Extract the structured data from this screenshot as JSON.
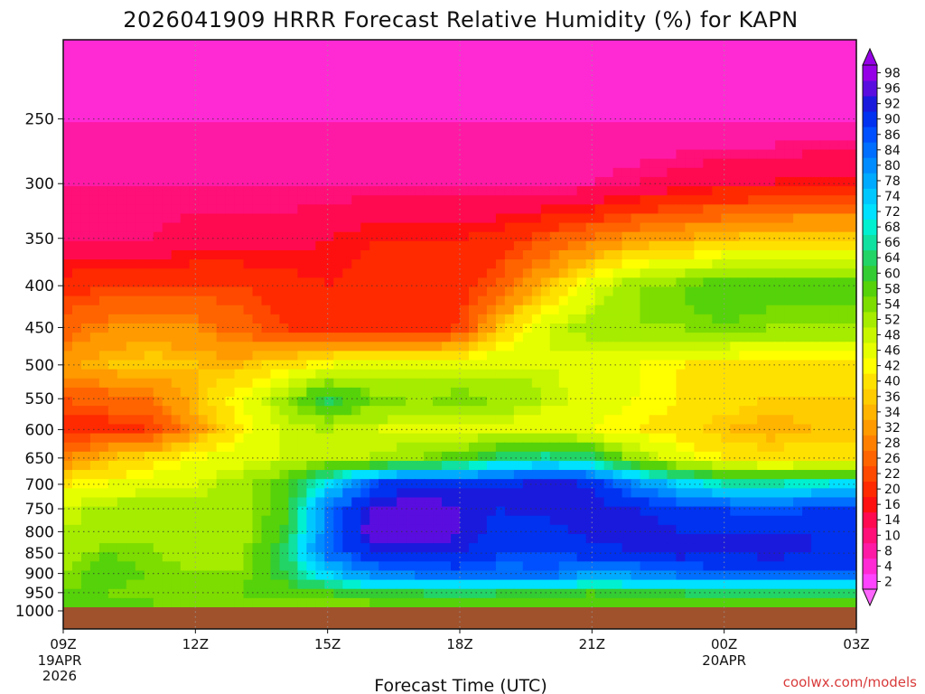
{
  "chart_data": {
    "type": "heatmap",
    "title": "2026041909 HRRR Forecast Relative Humidity (%) for KAPN",
    "xlabel": "Forecast Time (UTC)",
    "ylabel": "",
    "credit": "coolwx.com/models",
    "x_ticks": [
      {
        "label": "09Z",
        "sub": [
          "19APR",
          "2026"
        ],
        "hour": 0
      },
      {
        "label": "12Z",
        "sub": [],
        "hour": 3
      },
      {
        "label": "15Z",
        "sub": [],
        "hour": 6
      },
      {
        "label": "18Z",
        "sub": [],
        "hour": 9
      },
      {
        "label": "21Z",
        "sub": [],
        "hour": 12
      },
      {
        "label": "00Z",
        "sub": [
          "20APR"
        ],
        "hour": 15
      },
      {
        "label": "03Z",
        "sub": [],
        "hour": 18
      }
    ],
    "y_axis": "pressure (hPa), log scale, inverted",
    "y_ticks": [
      250,
      300,
      350,
      400,
      450,
      500,
      550,
      600,
      650,
      700,
      750,
      800,
      850,
      900,
      950,
      1000
    ],
    "ylim": [
      1000,
      200
    ],
    "hours": [
      0,
      1,
      2,
      3,
      4,
      5,
      6,
      7,
      8,
      9,
      10,
      11,
      12,
      13,
      14,
      15,
      16,
      17,
      18
    ],
    "levels": [
      200,
      250,
      300,
      350,
      400,
      450,
      500,
      550,
      600,
      650,
      700,
      750,
      800,
      850,
      900,
      950,
      975
    ],
    "rh": [
      [
        2,
        2,
        2,
        2,
        2,
        2,
        2,
        2,
        2,
        2,
        2,
        2,
        2,
        2,
        2,
        2,
        2,
        2,
        2
      ],
      [
        4,
        4,
        4,
        4,
        4,
        4,
        4,
        4,
        4,
        4,
        4,
        4,
        4,
        4,
        4,
        4,
        4,
        4,
        4
      ],
      [
        8,
        8,
        8,
        8,
        8,
        8,
        8,
        8,
        8,
        8,
        8,
        8,
        8,
        10,
        12,
        14,
        14,
        16,
        16
      ],
      [
        10,
        10,
        10,
        12,
        12,
        12,
        14,
        16,
        16,
        16,
        18,
        22,
        26,
        30,
        32,
        34,
        36,
        36,
        36
      ],
      [
        18,
        20,
        20,
        20,
        20,
        18,
        16,
        18,
        18,
        18,
        24,
        34,
        44,
        52,
        54,
        58,
        56,
        56,
        56
      ],
      [
        24,
        28,
        30,
        28,
        24,
        20,
        18,
        18,
        18,
        20,
        36,
        46,
        50,
        52,
        52,
        54,
        52,
        52,
        52
      ],
      [
        30,
        34,
        36,
        34,
        34,
        38,
        42,
        44,
        44,
        46,
        46,
        46,
        44,
        42,
        40,
        38,
        38,
        38,
        38
      ],
      [
        22,
        24,
        26,
        34,
        42,
        50,
        62,
        54,
        52,
        54,
        52,
        48,
        44,
        42,
        40,
        38,
        36,
        36,
        36
      ],
      [
        18,
        18,
        20,
        30,
        40,
        46,
        48,
        46,
        44,
        44,
        44,
        42,
        42,
        40,
        38,
        34,
        32,
        34,
        34
      ],
      [
        28,
        34,
        38,
        42,
        44,
        46,
        48,
        48,
        52,
        56,
        62,
        66,
        62,
        50,
        44,
        40,
        38,
        38,
        38
      ],
      [
        40,
        42,
        44,
        46,
        50,
        56,
        70,
        86,
        90,
        90,
        90,
        92,
        90,
        80,
        72,
        66,
        66,
        68,
        70
      ],
      [
        46,
        50,
        52,
        50,
        50,
        56,
        82,
        92,
        94,
        92,
        90,
        92,
        92,
        90,
        88,
        86,
        84,
        86,
        86
      ],
      [
        48,
        50,
        52,
        50,
        50,
        58,
        82,
        94,
        96,
        92,
        88,
        88,
        92,
        92,
        90,
        90,
        90,
        90,
        90
      ],
      [
        50,
        54,
        52,
        50,
        50,
        62,
        82,
        90,
        90,
        90,
        86,
        86,
        88,
        90,
        92,
        90,
        92,
        90,
        90
      ],
      [
        52,
        56,
        54,
        52,
        52,
        60,
        72,
        80,
        82,
        84,
        82,
        84,
        78,
        80,
        82,
        84,
        84,
        84,
        84
      ],
      [
        54,
        54,
        52,
        52,
        54,
        56,
        58,
        60,
        60,
        62,
        60,
        60,
        58,
        60,
        60,
        62,
        62,
        62,
        62
      ],
      [
        56,
        56,
        54,
        54,
        54,
        54,
        54,
        54,
        56,
        56,
        56,
        58,
        56,
        56,
        58,
        58,
        58,
        58,
        58
      ]
    ],
    "colorbar": {
      "ticks": [
        2,
        4,
        8,
        10,
        14,
        16,
        20,
        22,
        26,
        28,
        32,
        34,
        36,
        40,
        42,
        46,
        48,
        52,
        54,
        58,
        60,
        64,
        66,
        68,
        72,
        74,
        78,
        80,
        84,
        86,
        90,
        92,
        96,
        98
      ],
      "colors": [
        "#ff44ff",
        "#ff2ad4",
        "#ff1aa6",
        "#ff0f78",
        "#ff0a50",
        "#ff1010",
        "#ff2a00",
        "#ff4800",
        "#ff6400",
        "#ff8000",
        "#ff9a00",
        "#ffb400",
        "#ffcc00",
        "#ffe100",
        "#ffff00",
        "#e6ff00",
        "#c8f500",
        "#a5ec00",
        "#7ddc00",
        "#55d20a",
        "#33cc33",
        "#22d466",
        "#10e0a0",
        "#00f0d0",
        "#00e0ff",
        "#00c8ff",
        "#00aaff",
        "#008cff",
        "#006eff",
        "#0050ff",
        "#0032f0",
        "#1a1add",
        "#5a0ddf",
        "#9600e6"
      ]
    },
    "ground_color": "#a0522d"
  }
}
